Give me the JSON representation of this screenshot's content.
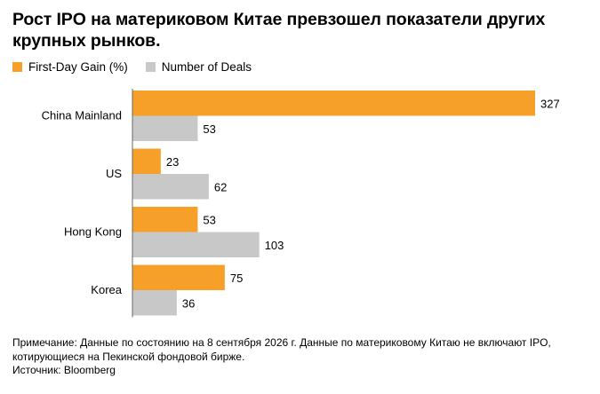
{
  "title": "Рост IPO на материковом Китае превзошел показатели других крупных рынков.",
  "legend": [
    {
      "label": "First-Day Gain (%)",
      "color": "#f6a02a"
    },
    {
      "label": "Number of Deals",
      "color": "#c8c8c8"
    }
  ],
  "footer": {
    "note_line1": "Примечание: Данные по состоянию на 8 сентября 2026 г. Данные по материковому Китаю не включают IPO,",
    "note_line2": "котирующиеся на Пекинской фондовой бирже.",
    "source": "Источник: Bloomberg"
  },
  "chart_data": {
    "type": "bar",
    "orientation": "horizontal",
    "categories": [
      "China Mainland",
      "US",
      "Hong Kong",
      "Korea"
    ],
    "series": [
      {
        "name": "First-Day Gain (%)",
        "values": [
          327,
          23,
          53,
          75
        ],
        "color": "#f6a02a"
      },
      {
        "name": "Number of Deals",
        "values": [
          53,
          62,
          103,
          36
        ],
        "color": "#c8c8c8"
      }
    ],
    "title": "Рост IPO на материковом Китае превзошел показатели других крупных рынков.",
    "xlim": [
      0,
      327
    ],
    "grid": false,
    "legend_position": "top-left"
  }
}
